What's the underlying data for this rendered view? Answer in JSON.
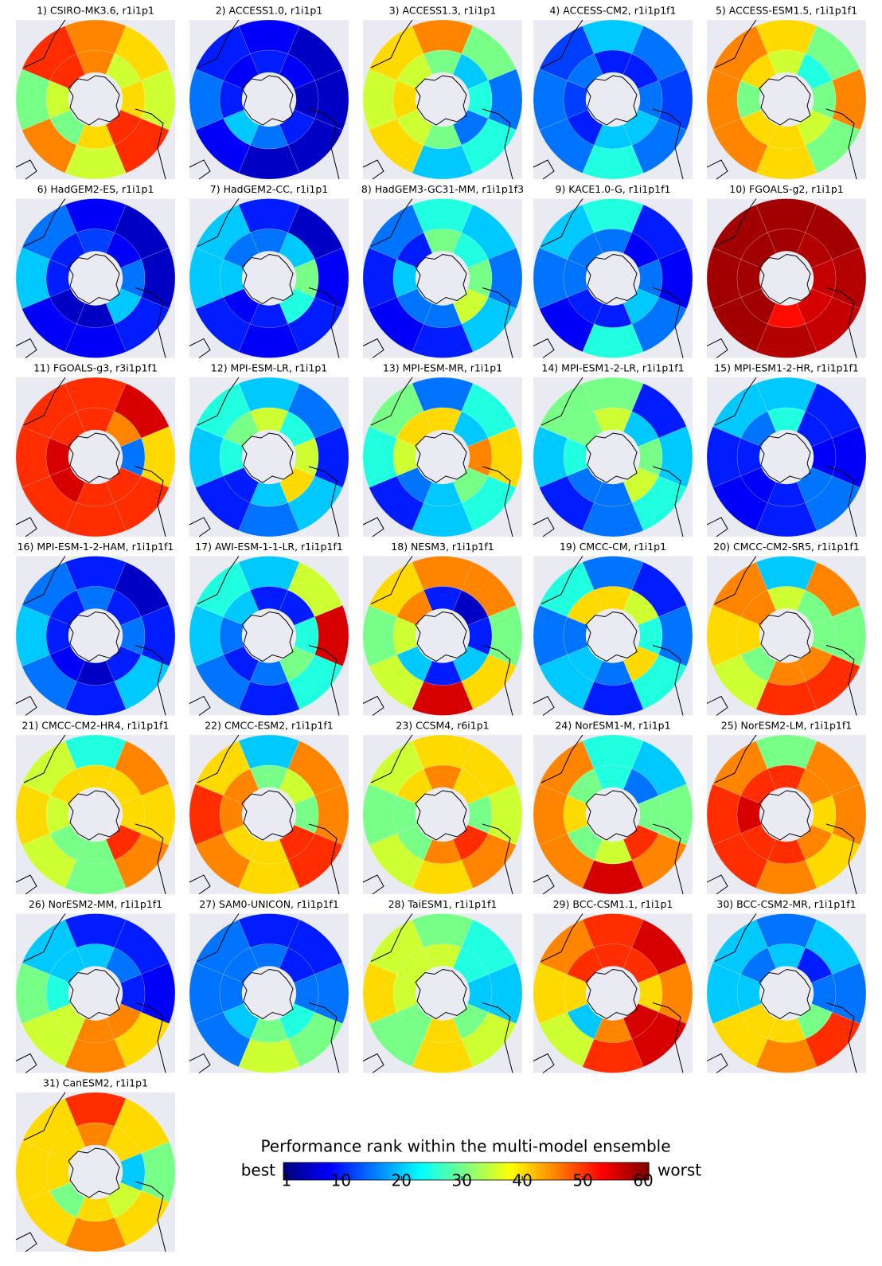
{
  "chart_data": {
    "type": "polar-heatmap",
    "colormap": "jet",
    "colorbar_title": "Performance rank within the multi-model ensemble",
    "low_label": "best",
    "high_label": "worst",
    "clim": [
      1,
      60
    ],
    "cticks": [
      1,
      10,
      20,
      30,
      40,
      50,
      60
    ],
    "panels": [
      {
        "title": "1) CSIRO-MK3.6, r1i1p1",
        "outer": [
          45,
          40,
          35,
          50,
          35,
          45,
          30,
          50
        ],
        "inner": [
          45,
          35,
          40,
          50,
          40,
          30,
          35,
          50
        ]
      },
      {
        "title": "2) ACCESS1.0, r1i1p1",
        "outer": [
          8,
          5,
          5,
          5,
          5,
          8,
          15,
          10
        ],
        "inner": [
          10,
          8,
          5,
          10,
          15,
          20,
          10,
          8
        ]
      },
      {
        "title": "3) ACCESS1.3, r1i1p1",
        "outer": [
          45,
          30,
          15,
          25,
          20,
          40,
          35,
          40
        ],
        "inner": [
          30,
          20,
          25,
          15,
          30,
          35,
          40,
          35
        ]
      },
      {
        "title": "4) ACCESS-CM2, r1i1p1f1",
        "outer": [
          20,
          15,
          12,
          15,
          25,
          15,
          15,
          12
        ],
        "inner": [
          10,
          10,
          15,
          20,
          20,
          10,
          12,
          15
        ]
      },
      {
        "title": "5) ACCESS-ESM1.5, r1i1p1f1",
        "outer": [
          40,
          30,
          45,
          30,
          40,
          45,
          45,
          45
        ],
        "inner": [
          35,
          25,
          30,
          35,
          40,
          40,
          30,
          40
        ]
      },
      {
        "title": "6) HadGEM2-ES, r1i1p1",
        "outer": [
          8,
          5,
          5,
          10,
          8,
          8,
          20,
          15
        ],
        "inner": [
          12,
          8,
          15,
          20,
          5,
          5,
          10,
          10
        ]
      },
      {
        "title": "7) HadGEM2-CC, r1i1p1",
        "outer": [
          10,
          5,
          8,
          10,
          8,
          10,
          20,
          20
        ],
        "inner": [
          15,
          20,
          30,
          25,
          10,
          8,
          20,
          15
        ]
      },
      {
        "title": "8) HadGEM3-GC31-MM, r1i1p1f3",
        "outer": [
          25,
          20,
          15,
          20,
          10,
          8,
          10,
          15
        ],
        "inner": [
          30,
          25,
          30,
          35,
          15,
          15,
          20,
          10
        ]
      },
      {
        "title": "9) KACE1.0-G, r1i1p1f1",
        "outer": [
          25,
          10,
          8,
          15,
          25,
          8,
          15,
          20
        ],
        "inner": [
          15,
          8,
          15,
          20,
          10,
          10,
          15,
          15
        ]
      },
      {
        "title": "10) FGOALS-g2, r1i1p1",
        "outer": [
          58,
          58,
          57,
          56,
          57,
          58,
          58,
          58
        ],
        "inner": [
          58,
          57,
          56,
          55,
          52,
          58,
          58,
          58
        ]
      },
      {
        "title": "11) FGOALS-g3, r3i1p1f1",
        "outer": [
          50,
          55,
          40,
          50,
          50,
          50,
          50,
          50
        ],
        "inner": [
          50,
          45,
          15,
          50,
          50,
          55,
          55,
          50
        ]
      },
      {
        "title": "12) MPI-ESM-LR, r1i1p1",
        "outer": [
          20,
          15,
          10,
          20,
          15,
          10,
          20,
          25
        ],
        "inner": [
          35,
          25,
          35,
          40,
          20,
          10,
          25,
          30
        ]
      },
      {
        "title": "13) MPI-ESM-MR, r1i1p1",
        "outer": [
          15,
          25,
          40,
          25,
          20,
          10,
          25,
          30
        ],
        "inner": [
          40,
          20,
          45,
          30,
          20,
          15,
          35,
          40
        ]
      },
      {
        "title": "14) MPI-ESM1-2-LR, r1i1p1f1",
        "outer": [
          30,
          10,
          20,
          25,
          15,
          10,
          20,
          30
        ],
        "inner": [
          35,
          20,
          30,
          35,
          15,
          15,
          25,
          30
        ]
      },
      {
        "title": "15) MPI-ESM1-2-HR, r1i1p1f1",
        "outer": [
          20,
          10,
          8,
          15,
          10,
          8,
          10,
          20
        ],
        "inner": [
          25,
          10,
          8,
          15,
          10,
          8,
          10,
          15
        ]
      },
      {
        "title": "16) MPI-ESM-1-2-HAM, r1i1p1f1",
        "outer": [
          10,
          5,
          10,
          20,
          10,
          15,
          20,
          15
        ],
        "inner": [
          15,
          10,
          15,
          10,
          5,
          8,
          10,
          10
        ]
      },
      {
        "title": "17) AWI-ESM-1-1-LR, r1i1p1f1",
        "outer": [
          20,
          35,
          55,
          25,
          10,
          15,
          20,
          25
        ],
        "inner": [
          10,
          10,
          25,
          30,
          15,
          10,
          15,
          20
        ]
      },
      {
        "title": "18) NESM3, r1i1p1f1",
        "outer": [
          45,
          45,
          30,
          40,
          55,
          35,
          30,
          40
        ],
        "inner": [
          10,
          5,
          10,
          20,
          10,
          20,
          35,
          45
        ]
      },
      {
        "title": "19) CMCC-CM, r1i1p1",
        "outer": [
          15,
          10,
          15,
          25,
          10,
          20,
          15,
          25
        ],
        "inner": [
          40,
          35,
          25,
          40,
          15,
          20,
          15,
          40
        ]
      },
      {
        "title": "20) CMCC-CM2-SR5, r1i1p1f1",
        "outer": [
          20,
          45,
          30,
          50,
          50,
          35,
          40,
          45
        ],
        "inner": [
          35,
          30,
          30,
          45,
          45,
          30,
          40,
          45
        ]
      },
      {
        "title": "21) CMCC-CM2-HR4, r1i1p1f1",
        "outer": [
          25,
          45,
          40,
          45,
          30,
          35,
          40,
          35
        ],
        "inner": [
          40,
          40,
          40,
          50,
          30,
          30,
          35,
          40
        ]
      },
      {
        "title": "22) CMCC-ESM2, r1i1p1f1",
        "outer": [
          20,
          45,
          45,
          50,
          40,
          45,
          50,
          40
        ],
        "inner": [
          30,
          35,
          30,
          50,
          40,
          40,
          45,
          45
        ]
      },
      {
        "title": "23) CCSM4, r6i1p1",
        "outer": [
          40,
          40,
          35,
          45,
          40,
          35,
          30,
          35
        ],
        "inner": [
          45,
          40,
          30,
          50,
          45,
          30,
          30,
          40
        ]
      },
      {
        "title": "24) NorESM1-M, r1i1p1",
        "outer": [
          25,
          20,
          30,
          45,
          55,
          45,
          45,
          45
        ],
        "inner": [
          25,
          15,
          30,
          50,
          35,
          30,
          40,
          30
        ]
      },
      {
        "title": "25) NorESM2-LM, r1i1p1f1",
        "outer": [
          30,
          45,
          45,
          40,
          45,
          50,
          50,
          45
        ],
        "inner": [
          50,
          45,
          40,
          45,
          50,
          50,
          55,
          50
        ]
      },
      {
        "title": "26) NorESM2-MM, r1i1p1f1",
        "outer": [
          10,
          10,
          8,
          40,
          45,
          35,
          30,
          20
        ],
        "inner": [
          20,
          15,
          10,
          45,
          45,
          35,
          25,
          20
        ]
      },
      {
        "title": "27) SAM0-UNICON, r1i1p1f1",
        "outer": [
          10,
          10,
          15,
          30,
          35,
          15,
          15,
          15
        ],
        "inner": [
          15,
          10,
          15,
          25,
          30,
          20,
          15,
          15
        ]
      },
      {
        "title": "28) TaiESM1, r1i1p1f1",
        "outer": [
          30,
          25,
          20,
          35,
          40,
          30,
          40,
          35
        ],
        "inner": [
          35,
          25,
          20,
          30,
          40,
          30,
          35,
          35
        ]
      },
      {
        "title": "29) BCC-CSM1.1, r1i1p1",
        "outer": [
          50,
          55,
          45,
          55,
          50,
          35,
          40,
          45
        ],
        "inner": [
          50,
          50,
          40,
          55,
          45,
          20,
          40,
          50
        ]
      },
      {
        "title": "30) BCC-CSM2-MR, r1i1p1f1",
        "outer": [
          15,
          20,
          15,
          50,
          45,
          40,
          20,
          20
        ],
        "inner": [
          20,
          10,
          15,
          30,
          40,
          40,
          20,
          15
        ]
      },
      {
        "title": "31) CanESM2, r1i1p1",
        "outer": [
          50,
          40,
          30,
          40,
          45,
          40,
          40,
          40
        ],
        "inner": [
          45,
          40,
          20,
          35,
          40,
          30,
          40,
          40
        ]
      }
    ]
  }
}
